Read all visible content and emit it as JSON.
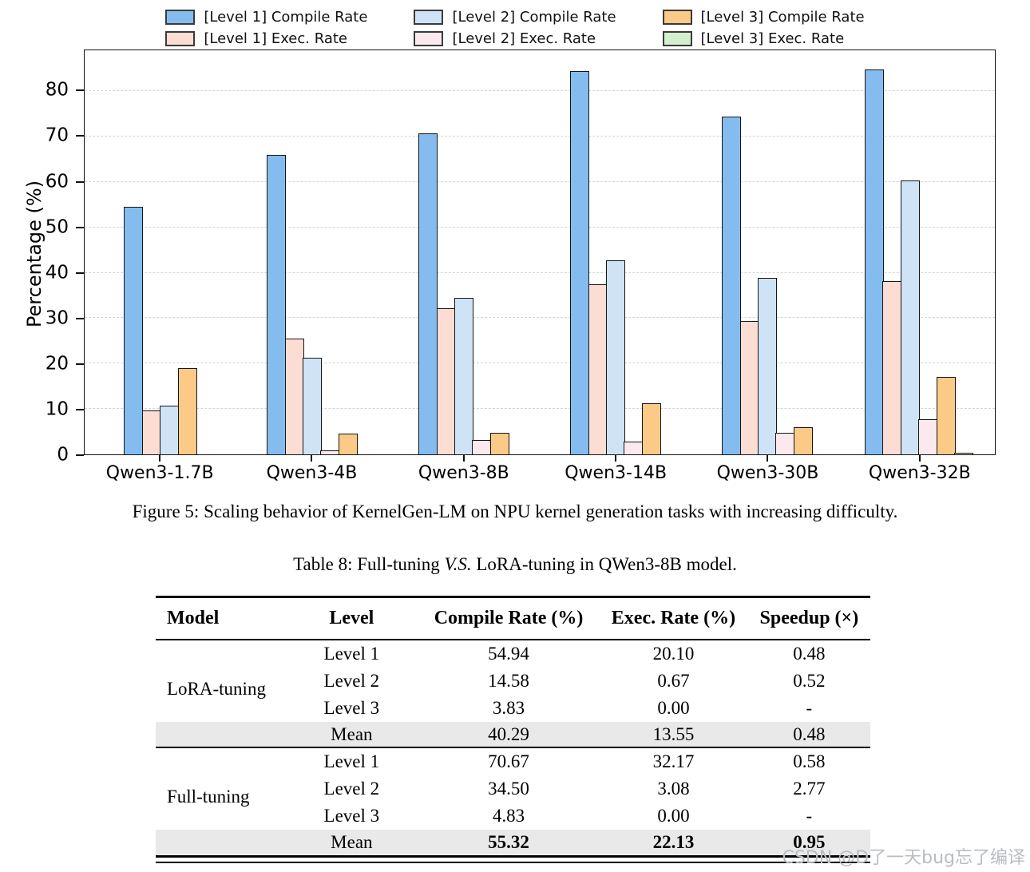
{
  "figure": {
    "caption": "Figure 5: Scaling behavior of KernelGen-LM on NPU kernel generation tasks with increasing difficulty."
  },
  "chart_data": {
    "type": "bar",
    "title": "",
    "xlabel": "",
    "ylabel": "Percentage (%)",
    "ylim": [
      0,
      89
    ],
    "yticks": [
      0,
      10,
      20,
      30,
      40,
      50,
      60,
      70,
      80
    ],
    "grid": "horizontal-dashed",
    "legend_position": "top",
    "categories": [
      "Qwen3-1.7B",
      "Qwen3-4B",
      "Qwen3-8B",
      "Qwen3-14B",
      "Qwen3-30B",
      "Qwen3-32B"
    ],
    "series": [
      {
        "name": "[Level 1] Compile Rate",
        "color": "#85BCF0",
        "values": [
          54.5,
          66.0,
          70.7,
          84.4,
          74.4,
          84.8
        ]
      },
      {
        "name": "[Level 1] Exec. Rate",
        "color": "#FBDDD3",
        "values": [
          9.7,
          25.5,
          32.2,
          37.4,
          29.3,
          38.2
        ]
      },
      {
        "name": "[Level 2] Compile Rate",
        "color": "#CFE3F7",
        "values": [
          10.8,
          21.2,
          34.5,
          42.8,
          38.8,
          60.3
        ]
      },
      {
        "name": "[Level 2] Exec. Rate",
        "color": "#FCE9EE",
        "values": [
          0.0,
          0.8,
          3.1,
          2.8,
          4.8,
          7.8
        ]
      },
      {
        "name": "[Level 3] Compile Rate",
        "color": "#FBCA87",
        "values": [
          19.0,
          4.5,
          4.8,
          11.2,
          6.0,
          17.0
        ]
      },
      {
        "name": "[Level 3] Exec. Rate",
        "color": "#D3F0CD",
        "values": [
          0.0,
          0.0,
          0.0,
          0.0,
          0.0,
          0.4
        ]
      }
    ]
  },
  "table": {
    "caption_prefix": "Table 8: Full-tuning ",
    "caption_italic": "V.S.",
    "caption_suffix": " LoRA-tuning in QWen3-8B model.",
    "headers": [
      "Model",
      "Level",
      "Compile Rate (%)",
      "Exec. Rate (%)",
      "Speedup (×)"
    ],
    "groups": [
      {
        "model": "LoRA-tuning",
        "rows": [
          {
            "level": "Level 1",
            "compile": "54.94",
            "exec": "20.10",
            "speedup": "0.48"
          },
          {
            "level": "Level 2",
            "compile": "14.58",
            "exec": "0.67",
            "speedup": "0.52"
          },
          {
            "level": "Level 3",
            "compile": "3.83",
            "exec": "0.00",
            "speedup": "-"
          }
        ],
        "mean": {
          "level": "Mean",
          "compile": "40.29",
          "exec": "13.55",
          "speedup": "0.48",
          "bold": false
        }
      },
      {
        "model": "Full-tuning",
        "rows": [
          {
            "level": "Level 1",
            "compile": "70.67",
            "exec": "32.17",
            "speedup": "0.58"
          },
          {
            "level": "Level 2",
            "compile": "34.50",
            "exec": "3.08",
            "speedup": "2.77"
          },
          {
            "level": "Level 3",
            "compile": "4.83",
            "exec": "0.00",
            "speedup": "-"
          }
        ],
        "mean": {
          "level": "Mean",
          "compile": "55.32",
          "exec": "22.13",
          "speedup": "0.95",
          "bold": true
        }
      }
    ]
  },
  "watermark": "CSDN @D了一天bug忘了编译"
}
